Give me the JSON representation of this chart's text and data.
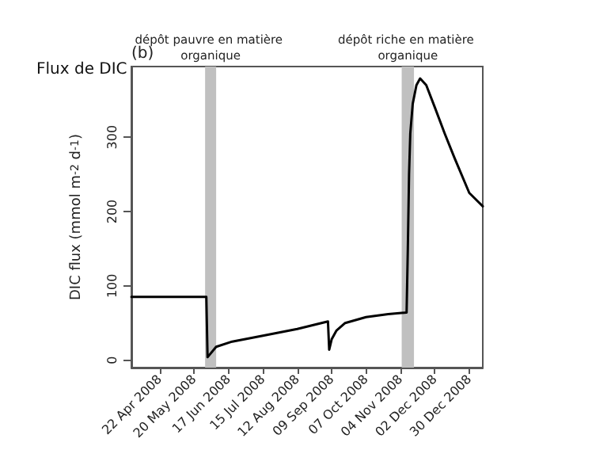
{
  "chart_data": {
    "type": "line",
    "title": "Flux de DIC",
    "ylabel": "DIC flux (mmol m$^{-2}$ d$^{-1}$)",
    "annotations": [
      "(b)"
    ],
    "xlim": [
      "2008-03-30",
      "2009-01-10"
    ],
    "xticks": [
      {
        "value": "2008-04-22",
        "label": "22 Apr 2008"
      },
      {
        "value": "2008-05-20",
        "label": "20 May 2008"
      },
      {
        "value": "2008-06-17",
        "label": "17 Jun 2008"
      },
      {
        "value": "2008-07-15",
        "label": "15 Jul 2008"
      },
      {
        "value": "2008-08-12",
        "label": "12 Aug 2008"
      },
      {
        "value": "2008-09-09",
        "label": "09 Sep 2008"
      },
      {
        "value": "2008-10-07",
        "label": "07 Oct 2008"
      },
      {
        "value": "2008-11-04",
        "label": "04 Nov 2008"
      },
      {
        "value": "2008-12-02",
        "label": "02 Dec 2008"
      },
      {
        "value": "2008-12-30",
        "label": "30 Dec 2008"
      }
    ],
    "ylim": [
      -10,
      395
    ],
    "yticks": [
      0,
      100,
      200,
      300
    ],
    "x": [
      "2008-03-30",
      "2008-05-30",
      "2008-05-31",
      "2008-06-07",
      "2008-06-20",
      "2008-07-15",
      "2008-08-12",
      "2008-09-06",
      "2008-09-07",
      "2008-09-09",
      "2008-09-13",
      "2008-09-20",
      "2008-10-07",
      "2008-10-25",
      "2008-11-09",
      "2008-11-10",
      "2008-11-11",
      "2008-11-12",
      "2008-11-14",
      "2008-11-17",
      "2008-11-20",
      "2008-11-25",
      "2008-12-02",
      "2008-12-10",
      "2008-12-18",
      "2008-12-30",
      "2009-01-10"
    ],
    "series": [
      {
        "color": "#000000",
        "values": [
          85,
          85,
          4,
          18,
          25,
          33,
          42,
          52,
          14,
          28,
          40,
          50,
          58,
          62,
          64,
          150,
          250,
          305,
          345,
          370,
          379,
          370,
          340,
          305,
          272,
          225,
          207
        ]
      }
    ],
    "bands": [
      {
        "axis": "x",
        "from": "2008-05-29",
        "to": "2008-06-07",
        "label": "dépôt pauvre en matière organique",
        "color": "#c0c0c0"
      },
      {
        "axis": "x",
        "from": "2008-11-05",
        "to": "2008-11-15",
        "label": "dépôt riche en matière organique",
        "color": "#c0c0c0"
      }
    ],
    "grid": false,
    "marker": "none",
    "line_style": "solid"
  }
}
